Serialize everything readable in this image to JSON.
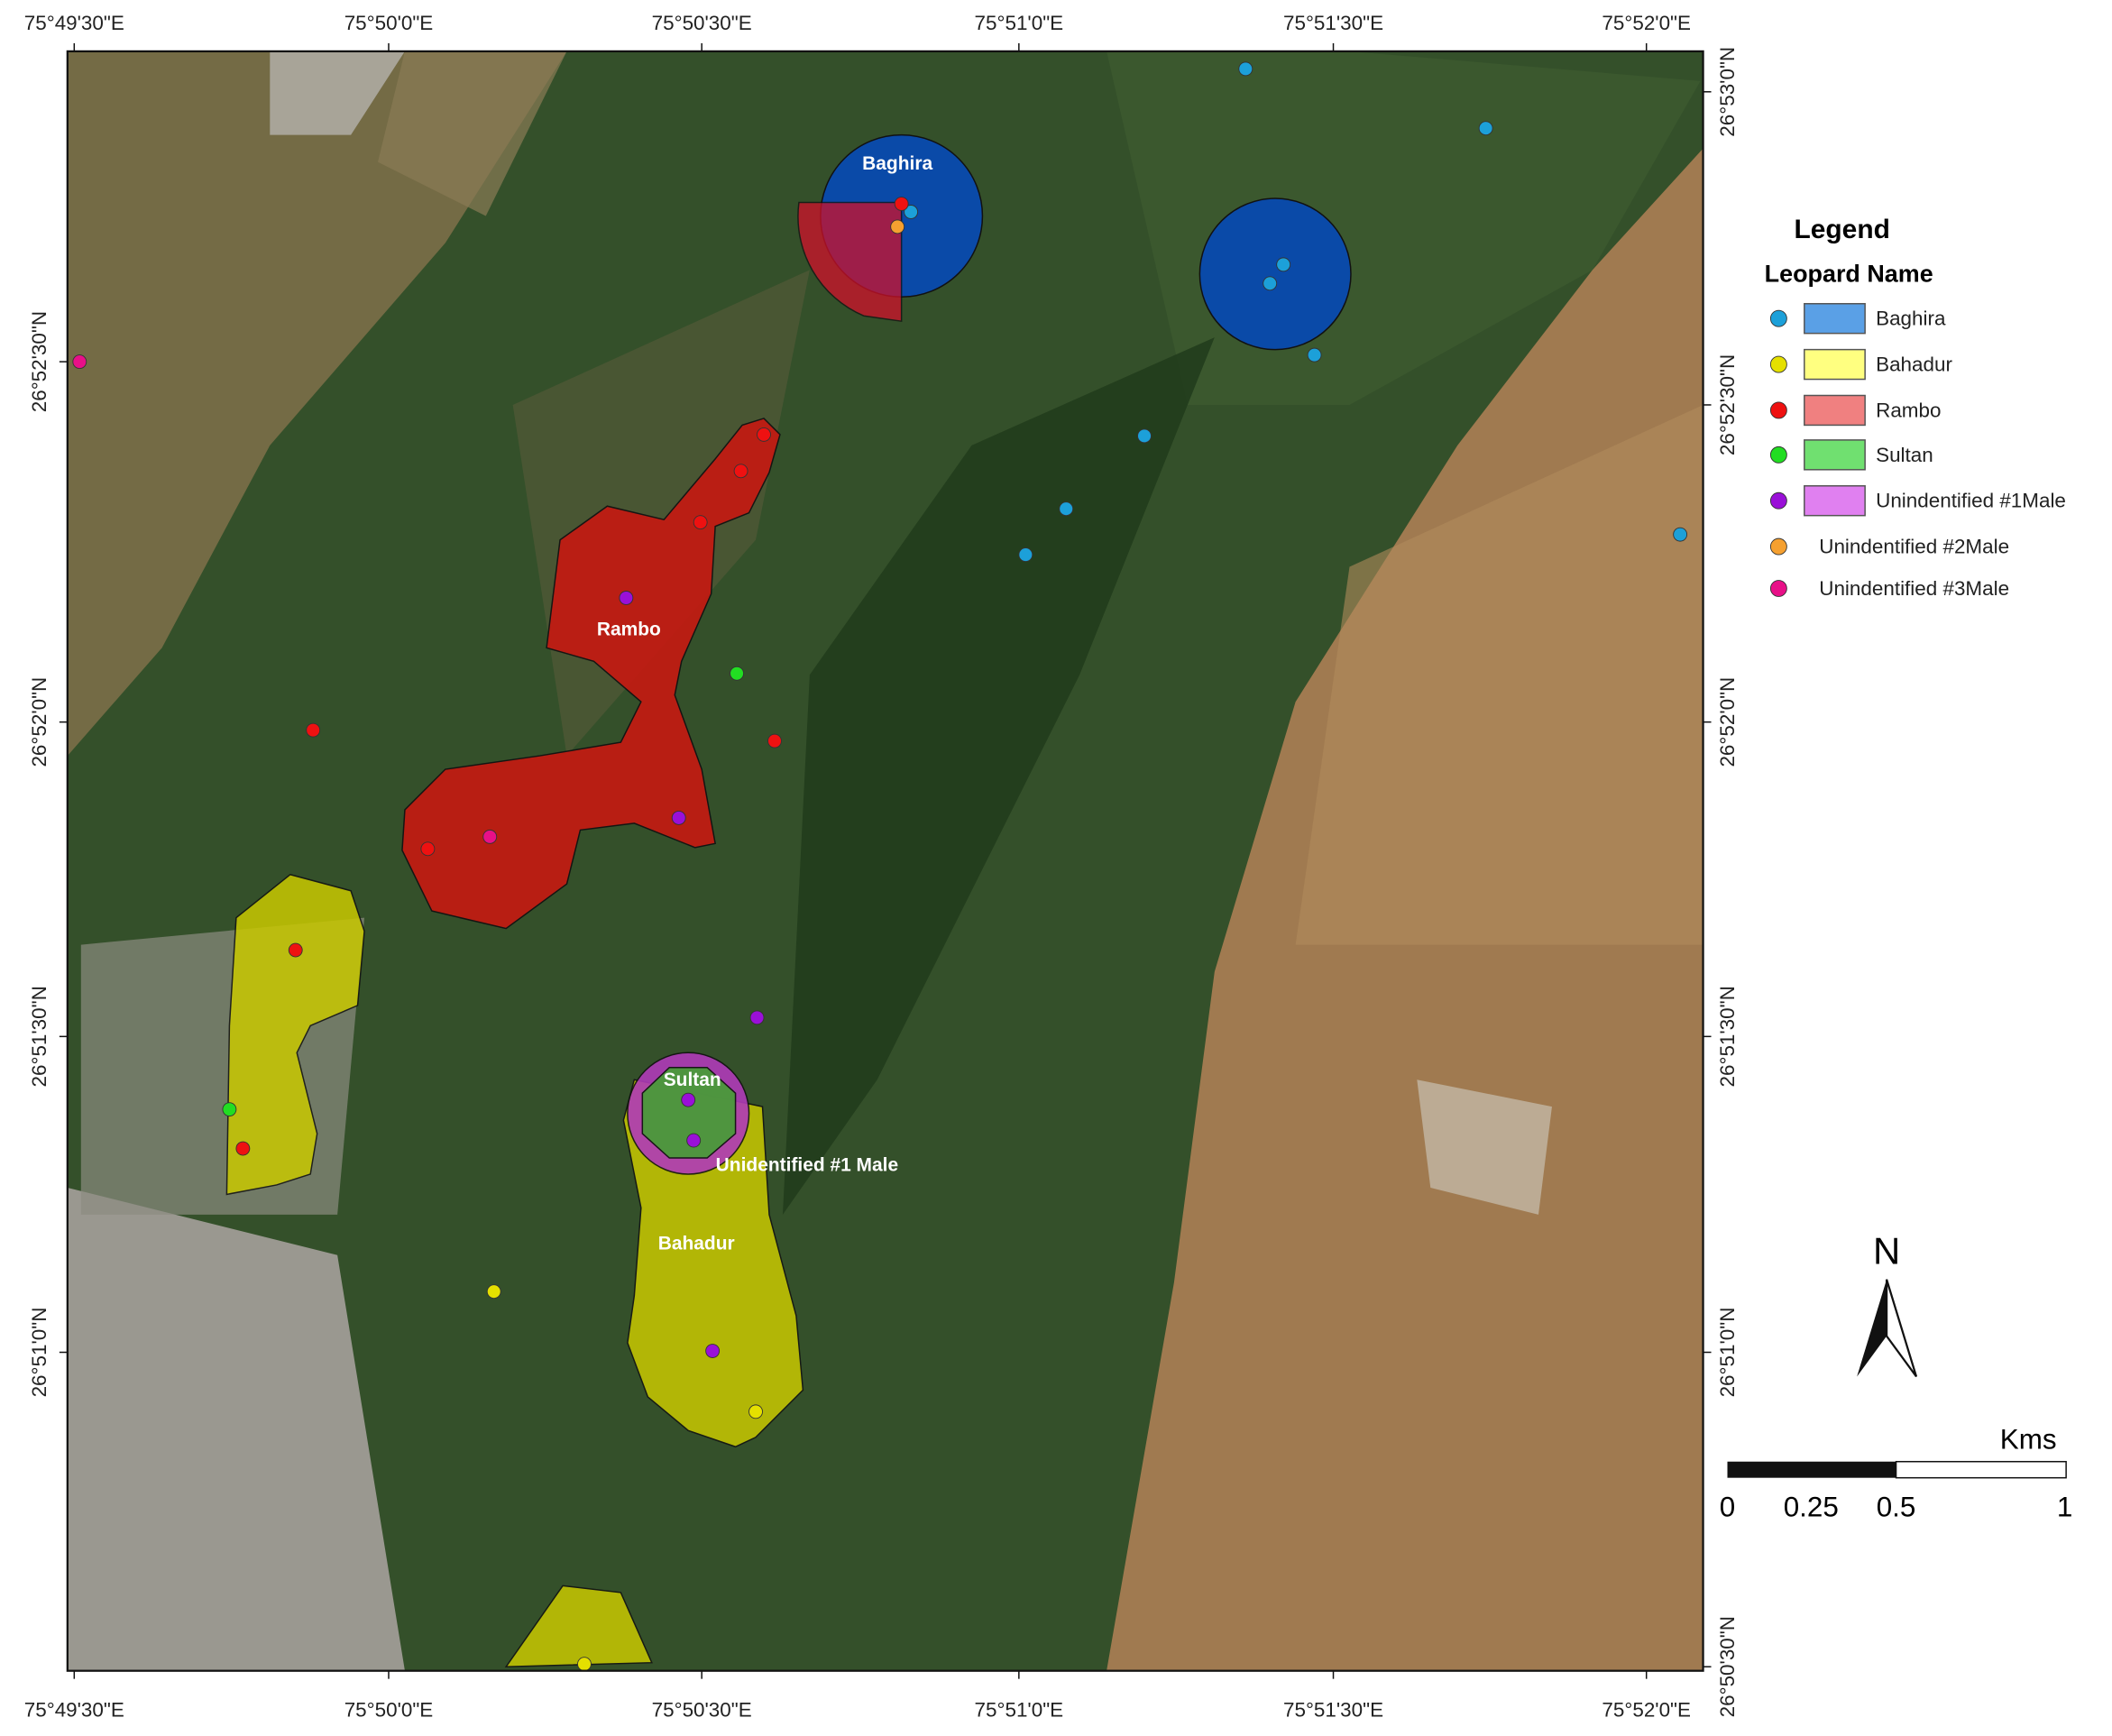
{
  "map": {
    "x_ticks": [
      "75°49'30\"E",
      "75°50'0\"E",
      "75°50'30\"E",
      "75°51'0\"E",
      "75°51'30\"E",
      "75°52'0\"E"
    ],
    "y_ticks": [
      "26°53'0\"N",
      "26°52'30\"N",
      "26°52'0\"N",
      "26°51'30\"N",
      "26°51'0\"N",
      "26°50'30\"N"
    ],
    "region_labels": [
      "Baghira",
      "Rambo",
      "Sultan",
      "Unidentified #1 Male",
      "Bahadur"
    ]
  },
  "legend": {
    "title": "Legend",
    "subtitle": "Leopard Name",
    "items": [
      {
        "name": "Baghira",
        "dot_color": "#1ca0d9",
        "fill_color": "#5aa0e6"
      },
      {
        "name": "Bahadur",
        "dot_color": "#e5e000",
        "fill_color": "#ffff80"
      },
      {
        "name": "Rambo",
        "dot_color": "#ee1111",
        "fill_color": "#f08080"
      },
      {
        "name": "Sultan",
        "dot_color": "#22dd22",
        "fill_color": "#70e070"
      },
      {
        "name": "Unindentified #1Male",
        "dot_color": "#9a10d8",
        "fill_color": "#e080f0"
      },
      {
        "name": "Unindentified #2Male",
        "dot_color": "#f5a030"
      },
      {
        "name": "Unindentified #3Male",
        "dot_color": "#e81088"
      }
    ]
  },
  "north_arrow": "N",
  "scale_bar": {
    "unit": "Kms",
    "labels": [
      "0",
      "0.25",
      "0.5",
      "1"
    ]
  }
}
